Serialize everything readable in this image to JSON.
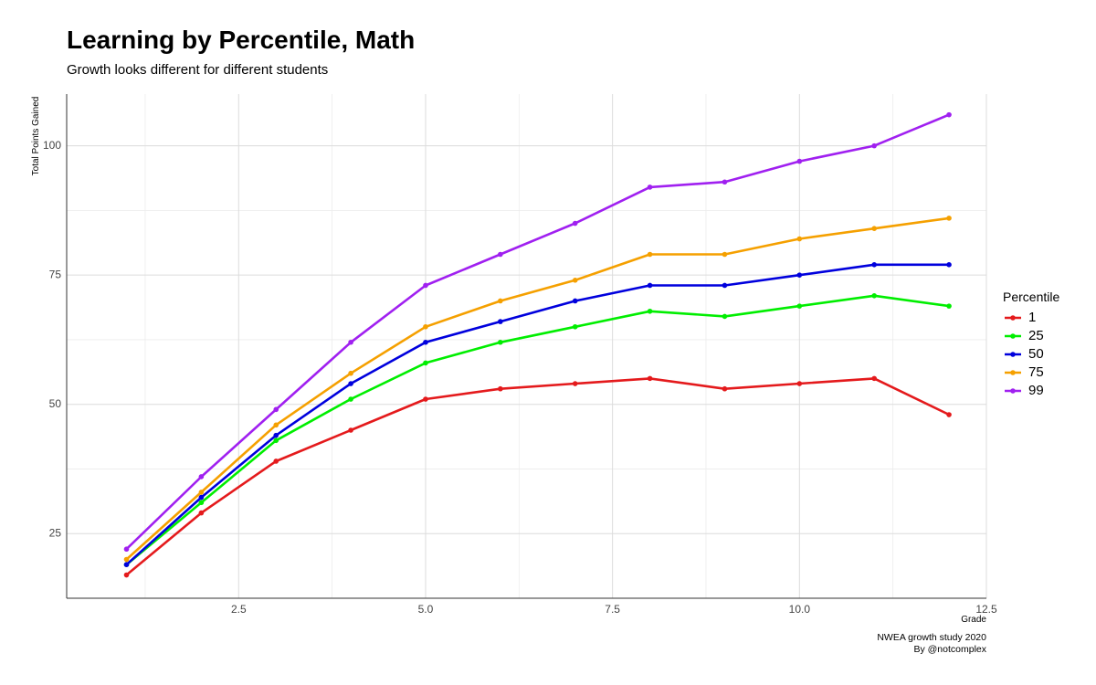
{
  "chart_data": {
    "type": "line",
    "title": "Learning by Percentile, Math",
    "subtitle": "Growth looks different for different students",
    "xlabel": "Grade",
    "ylabel": "Total Points Gained",
    "xlim": [
      0.2,
      12.5
    ],
    "ylim": [
      12.5,
      110
    ],
    "x_ticks": [
      2.5,
      5.0,
      7.5,
      10.0,
      12.5
    ],
    "x_tick_labels": [
      "2.5",
      "5.0",
      "7.5",
      "10.0",
      "12.5"
    ],
    "y_ticks": [
      25,
      50,
      75,
      100
    ],
    "y_tick_labels": [
      "25",
      "50",
      "75",
      "100"
    ],
    "grid": true,
    "legend_title": "Percentile",
    "legend_position": "right",
    "x": [
      1,
      2,
      3,
      4,
      5,
      6,
      7,
      8,
      9,
      10,
      11,
      12
    ],
    "series": [
      {
        "name": "1",
        "color": "#e41a1c",
        "values": [
          17,
          29,
          39,
          45,
          51,
          53,
          54,
          55,
          53,
          54,
          55,
          48
        ]
      },
      {
        "name": "25",
        "color": "#00ee00",
        "values": [
          19,
          31,
          43,
          51,
          58,
          62,
          65,
          68,
          67,
          69,
          71,
          69
        ]
      },
      {
        "name": "50",
        "color": "#0000dd",
        "values": [
          19,
          32,
          44,
          54,
          62,
          66,
          70,
          73,
          73,
          75,
          77,
          77
        ]
      },
      {
        "name": "75",
        "color": "#f5a000",
        "values": [
          20,
          33,
          46,
          56,
          65,
          70,
          74,
          79,
          79,
          82,
          84,
          86
        ]
      },
      {
        "name": "99",
        "color": "#a020f0",
        "values": [
          22,
          36,
          49,
          62,
          73,
          79,
          85,
          92,
          93,
          97,
          100,
          106
        ]
      }
    ]
  },
  "caption": {
    "line1": "NWEA growth study 2020",
    "line2": "By @notcomplex"
  }
}
